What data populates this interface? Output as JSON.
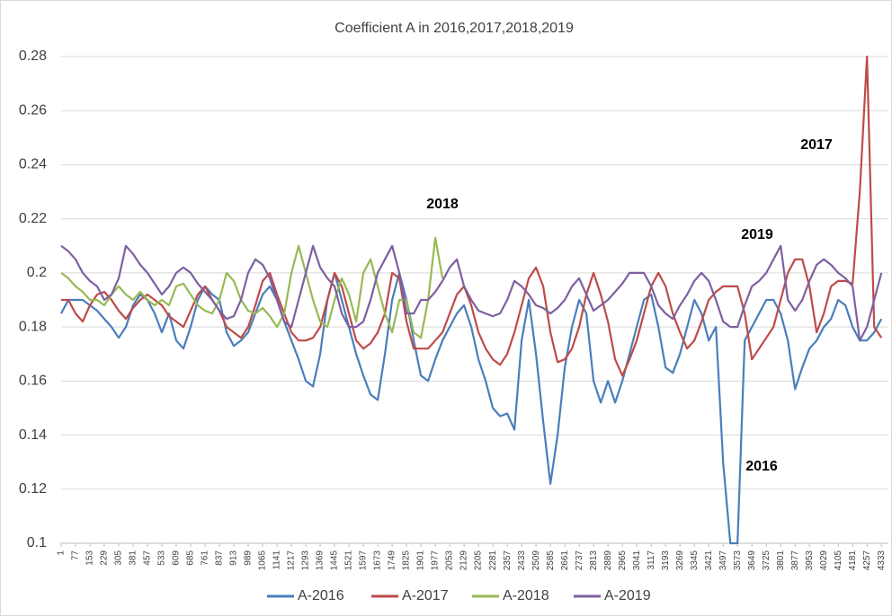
{
  "chart_data": {
    "type": "line",
    "title": "Coefficient A in 2016,2017,2018,2019",
    "x": [
      1,
      39,
      77,
      115,
      153,
      191,
      229,
      267,
      305,
      343,
      381,
      419,
      457,
      495,
      533,
      571,
      609,
      647,
      685,
      723,
      761,
      799,
      837,
      875,
      913,
      951,
      989,
      1027,
      1065,
      1103,
      1141,
      1179,
      1217,
      1255,
      1293,
      1331,
      1369,
      1407,
      1445,
      1483,
      1521,
      1559,
      1597,
      1635,
      1673,
      1711,
      1749,
      1787,
      1825,
      1863,
      1901,
      1939,
      1977,
      2015,
      2053,
      2091,
      2129,
      2167,
      2205,
      2243,
      2281,
      2319,
      2357,
      2395,
      2433,
      2471,
      2509,
      2547,
      2585,
      2623,
      2661,
      2699,
      2737,
      2775,
      2813,
      2851,
      2889,
      2927,
      2965,
      3003,
      3041,
      3079,
      3117,
      3155,
      3193,
      3231,
      3269,
      3307,
      3345,
      3383,
      3421,
      3459,
      3497,
      3535,
      3573,
      3611,
      3649,
      3687,
      3725,
      3763,
      3801,
      3839,
      3877,
      3915,
      3953,
      3991,
      4029,
      4067,
      4105,
      4143,
      4181,
      4219,
      4257,
      4295,
      4333
    ],
    "series": [
      {
        "name": "A-2016",
        "color": "#4a7ebb",
        "values": [
          0.185,
          0.19,
          0.19,
          0.19,
          0.188,
          0.186,
          0.183,
          0.18,
          0.176,
          0.18,
          0.188,
          0.192,
          0.19,
          0.185,
          0.178,
          0.185,
          0.175,
          0.172,
          0.18,
          0.19,
          0.195,
          0.192,
          0.19,
          0.178,
          0.173,
          0.175,
          0.178,
          0.185,
          0.192,
          0.195,
          0.19,
          0.182,
          0.175,
          0.168,
          0.16,
          0.158,
          0.17,
          0.19,
          0.2,
          0.19,
          0.18,
          0.17,
          0.162,
          0.155,
          0.153,
          0.17,
          0.19,
          0.2,
          0.19,
          0.175,
          0.162,
          0.16,
          0.168,
          0.175,
          0.18,
          0.185,
          0.188,
          0.18,
          0.168,
          0.16,
          0.15,
          0.147,
          0.148,
          0.142,
          0.175,
          0.19,
          0.17,
          0.145,
          0.122,
          0.14,
          0.165,
          0.18,
          0.19,
          0.185,
          0.16,
          0.152,
          0.16,
          0.152,
          0.16,
          0.17,
          0.18,
          0.19,
          0.192,
          0.18,
          0.165,
          0.163,
          0.17,
          0.18,
          0.19,
          0.185,
          0.175,
          0.18,
          0.13,
          0.1,
          0.1,
          0.175,
          0.18,
          0.185,
          0.19,
          0.19,
          0.185,
          0.175,
          0.157,
          0.165,
          0.172,
          0.175,
          0.18,
          0.183,
          0.19,
          0.188,
          0.18,
          0.175,
          0.175,
          0.178,
          0.183
        ]
      },
      {
        "name": "A-2017",
        "color": "#be4b48",
        "values": [
          0.19,
          0.19,
          0.185,
          0.182,
          0.188,
          0.192,
          0.193,
          0.19,
          0.186,
          0.183,
          0.187,
          0.19,
          0.192,
          0.19,
          0.188,
          0.184,
          0.182,
          0.18,
          0.186,
          0.192,
          0.195,
          0.19,
          0.186,
          0.18,
          0.178,
          0.176,
          0.18,
          0.188,
          0.197,
          0.2,
          0.192,
          0.185,
          0.178,
          0.175,
          0.175,
          0.176,
          0.18,
          0.19,
          0.2,
          0.195,
          0.185,
          0.175,
          0.172,
          0.174,
          0.178,
          0.185,
          0.2,
          0.198,
          0.182,
          0.172,
          0.172,
          0.172,
          0.175,
          0.178,
          0.185,
          0.192,
          0.195,
          0.188,
          0.178,
          0.172,
          0.168,
          0.166,
          0.17,
          0.178,
          0.188,
          0.198,
          0.202,
          0.195,
          0.178,
          0.167,
          0.168,
          0.172,
          0.18,
          0.192,
          0.2,
          0.192,
          0.182,
          0.168,
          0.162,
          0.168,
          0.175,
          0.185,
          0.195,
          0.2,
          0.195,
          0.185,
          0.178,
          0.172,
          0.175,
          0.182,
          0.19,
          0.193,
          0.195,
          0.195,
          0.195,
          0.185,
          0.168,
          0.172,
          0.176,
          0.18,
          0.19,
          0.2,
          0.205,
          0.205,
          0.195,
          0.178,
          0.185,
          0.195,
          0.197,
          0.197,
          0.196,
          0.23,
          0.28,
          0.18,
          0.176
        ]
      },
      {
        "name": "A-2018",
        "color": "#98b954",
        "values": [
          0.2,
          0.198,
          0.195,
          0.193,
          0.19,
          0.19,
          0.188,
          0.192,
          0.195,
          0.192,
          0.19,
          0.193,
          0.19,
          0.188,
          0.19,
          0.188,
          0.195,
          0.196,
          0.192,
          0.188,
          0.186,
          0.185,
          0.19,
          0.2,
          0.197,
          0.19,
          0.186,
          0.185,
          0.187,
          0.184,
          0.18,
          0.185,
          0.2,
          0.21,
          0.2,
          0.19,
          0.182,
          0.18,
          0.19,
          0.198,
          0.192,
          0.182,
          0.2,
          0.205,
          0.195,
          0.185,
          0.178,
          0.19,
          0.19,
          0.178,
          0.176,
          0.19,
          0.213,
          0.198,
          null,
          null,
          null,
          null,
          null,
          null,
          null,
          null,
          null,
          null,
          null,
          null,
          null,
          null,
          null,
          null,
          null,
          null,
          null,
          null,
          null,
          null,
          null,
          null,
          null,
          null,
          null,
          null,
          null,
          null,
          null,
          null,
          null,
          null,
          null,
          null,
          null,
          null,
          null,
          null,
          null,
          null,
          null,
          null,
          null,
          null,
          null,
          null,
          null,
          null,
          null,
          null,
          null,
          null,
          null,
          null,
          null,
          null,
          null,
          null,
          null
        ]
      },
      {
        "name": "A-2019",
        "color": "#7d60a0",
        "values": [
          0.21,
          0.208,
          0.205,
          0.2,
          0.197,
          0.195,
          0.19,
          0.192,
          0.198,
          0.21,
          0.207,
          0.203,
          0.2,
          0.196,
          0.192,
          0.195,
          0.2,
          0.202,
          0.2,
          0.196,
          0.193,
          0.19,
          0.186,
          0.183,
          0.184,
          0.19,
          0.2,
          0.205,
          0.203,
          0.198,
          0.19,
          0.182,
          0.18,
          0.19,
          0.2,
          0.21,
          0.202,
          0.198,
          0.195,
          0.185,
          0.18,
          0.18,
          0.182,
          0.19,
          0.2,
          0.205,
          0.21,
          0.2,
          0.185,
          0.185,
          0.19,
          0.19,
          0.193,
          0.197,
          0.202,
          0.205,
          0.195,
          0.19,
          0.186,
          0.185,
          0.184,
          0.185,
          0.19,
          0.197,
          0.195,
          0.192,
          0.188,
          0.187,
          0.185,
          0.187,
          0.19,
          0.195,
          0.198,
          0.192,
          0.186,
          0.188,
          0.19,
          0.193,
          0.196,
          0.2,
          0.2,
          0.2,
          0.195,
          0.188,
          0.185,
          0.183,
          0.188,
          0.192,
          0.197,
          0.2,
          0.197,
          0.19,
          0.182,
          0.18,
          0.18,
          0.188,
          0.195,
          0.197,
          0.2,
          0.205,
          0.21,
          0.19,
          0.186,
          0.19,
          0.197,
          0.203,
          0.205,
          0.203,
          0.2,
          0.198,
          0.195,
          0.175,
          0.18,
          0.19,
          0.2
        ]
      }
    ],
    "xlim": [
      1,
      4370
    ],
    "xticks": [
      1,
      77,
      153,
      229,
      305,
      381,
      457,
      533,
      609,
      685,
      761,
      837,
      913,
      989,
      1065,
      1141,
      1217,
      1293,
      1369,
      1445,
      1521,
      1597,
      1673,
      1749,
      1825,
      1901,
      1977,
      2053,
      2129,
      2205,
      2281,
      2357,
      2433,
      2509,
      2585,
      2661,
      2737,
      2813,
      2889,
      2965,
      3041,
      3117,
      3193,
      3269,
      3345,
      3421,
      3497,
      3573,
      3649,
      3725,
      3801,
      3877,
      3953,
      4029,
      4105,
      4181,
      4257,
      4333
    ],
    "ylim": [
      0.1,
      0.28
    ],
    "yticks": [
      0.1,
      0.12,
      0.14,
      0.16,
      0.18,
      0.2,
      0.22,
      0.24,
      0.26,
      0.28
    ],
    "grid": true,
    "legend": "bottom",
    "annotations": [
      "2018",
      "2017",
      "2019",
      "2016"
    ]
  }
}
